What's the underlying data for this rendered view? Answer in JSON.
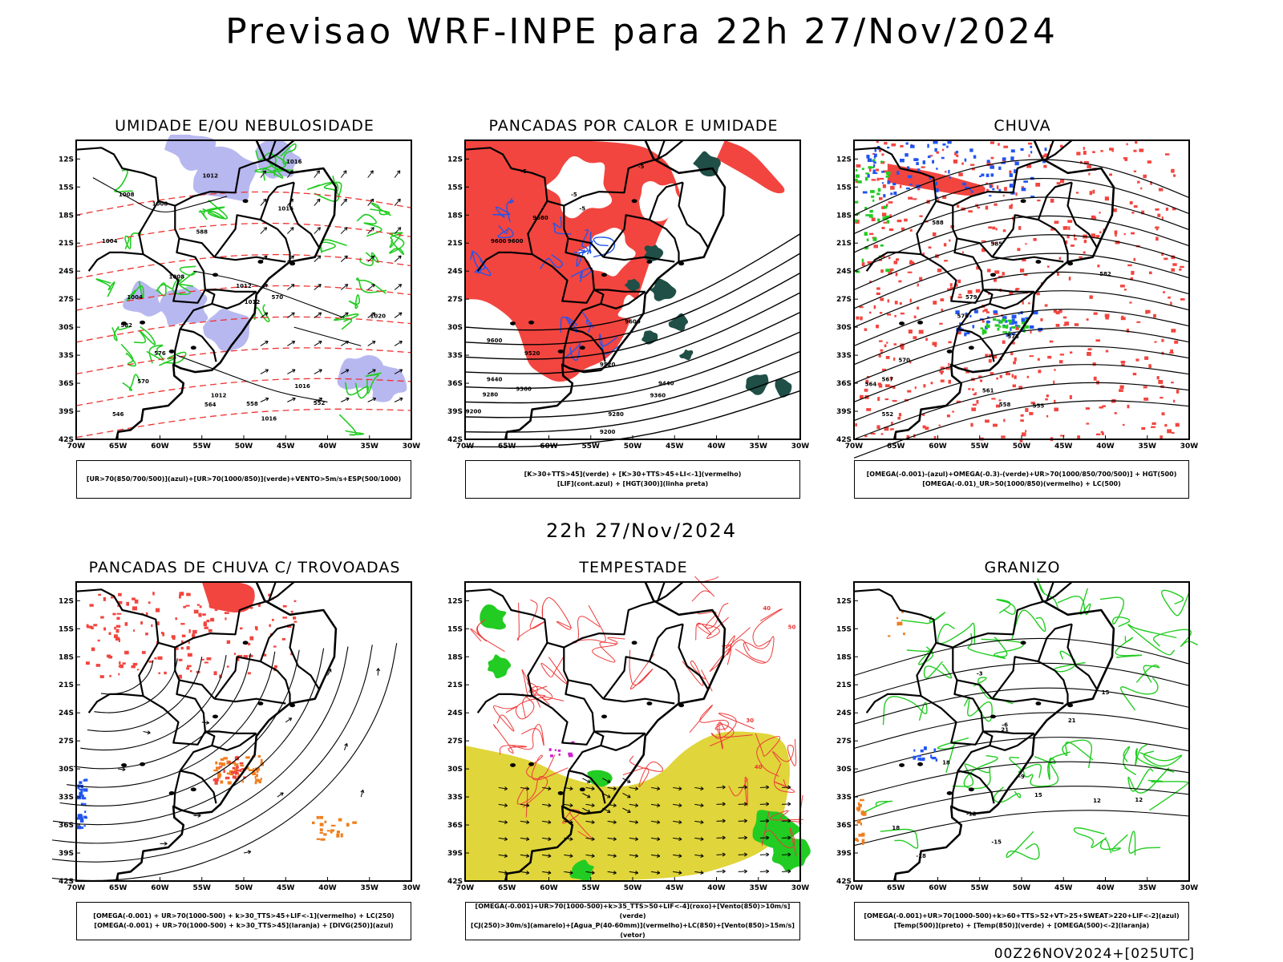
{
  "header": {
    "title": "Previsao WRF-INPE  para 22h 27/Nov/2024"
  },
  "mid_date": "22h 27/Nov/2024",
  "footer": "00Z26NOV2024+[025UTC]",
  "axes": {
    "lat_labels": [
      "12S",
      "15S",
      "18S",
      "21S",
      "24S",
      "27S",
      "30S",
      "33S",
      "36S",
      "39S",
      "42S"
    ],
    "lon_labels": [
      "70W",
      "65W",
      "60W",
      "55W",
      "50W",
      "45W",
      "40W",
      "35W",
      "30W"
    ]
  },
  "colors": {
    "red": "#f2453f",
    "green": "#22cc22",
    "blue": "#2255ee",
    "lavender": "#b8b8f0",
    "darkgreen": "#1f4f46",
    "yellow": "#e0d53a",
    "orange": "#f07e1e",
    "purple": "#cc22cc"
  },
  "panels": [
    {
      "id": "umidade",
      "title": "UMIDADE E/OU NEBULOSIDADE",
      "legend": [
        "[UR>70(850/700/500)](azul)+[UR>70(1000/850)](verde)+VENTO>5m/s+ESP(500/1000)"
      ],
      "contour_labels": [
        "1008",
        "1008",
        "1012",
        "1016",
        "1016",
        "1004",
        "1008",
        "1012",
        "1012",
        "1020",
        "1004",
        "1016",
        "1012",
        "1016",
        "582",
        "576",
        "570",
        "564",
        "558",
        "552",
        "546",
        "588",
        "570"
      ]
    },
    {
      "id": "pancadas",
      "title": "PANCADAS POR CALOR E UMIDADE",
      "legend": [
        "[K>30+TTS>45](verde) + [K>30+TTS>45+LI<-1](vermelho)",
        "[LIF](cont.azul) + [HGT(300)](linha preta)"
      ],
      "contour_labels": [
        "9600",
        "9600",
        "9680",
        "9600",
        "9520",
        "9440",
        "9360",
        "9280",
        "9200",
        "9600",
        "9520",
        "9440",
        "9360",
        "9280",
        "9200",
        "-5",
        "-5",
        "-5",
        "-5"
      ]
    },
    {
      "id": "chuva",
      "title": "CHUVA",
      "legend": [
        "[OMEGA(-0.001)-(azul)+OMEGA(-0.3)-(verde)+UR>70(1000/850/700/500)] + HGT(500)",
        "[OMEGA(-0.01)_UR>50(1000/850)(vermelho) + LC(500)"
      ],
      "contour_labels": [
        "588",
        "585",
        "582",
        "579",
        "576",
        "573",
        "570",
        "567",
        "564",
        "561",
        "558",
        "555",
        "552"
      ]
    },
    {
      "id": "trovoadas",
      "title": "PANCADAS DE CHUVA C/ TROVOADAS",
      "legend": [
        "[OMEGA(-0.001) + UR>70(1000-500) + k>30_TTS>45+LIF<-1](vermelho) + LC(250)",
        "[OMEGA(-0.001) + UR>70(1000-500) + k>30_TTS>45](laranja) + [DIVG(250)](azul)"
      ],
      "contour_labels": []
    },
    {
      "id": "tempestade",
      "title": "TEMPESTADE",
      "legend": [
        "[OMEGA(-0.001)+UR>70(1000-500)+k>35_TTS>50+LIF<-4](roxo)+[Vento(850)>10m/s](verde)",
        "[CJ(250)>30m/s](amarelo)+[Agua_P(40-60mm)](vermelho)+LC(850)+[Vento(850)>15m/s](vetor)"
      ],
      "contour_labels": [
        "50",
        "40",
        "30",
        "40"
      ]
    },
    {
      "id": "granizo",
      "title": "GRANIZO",
      "legend": [
        "[OMEGA(-0.001)+UR>70(1000-500)+k>60+TTS>52+VT>25+SWEAT>220+LIF<-2](azul)",
        "[Temp(500)](preto) + [Temp(850)](verde) + [OMEGA(500)<-2](laranja)"
      ],
      "contour_labels": [
        "-3",
        "-6",
        "-9",
        "-12",
        "-15",
        "-18",
        "18",
        "15",
        "12",
        "21",
        "15",
        "12",
        "18",
        "21"
      ]
    }
  ]
}
